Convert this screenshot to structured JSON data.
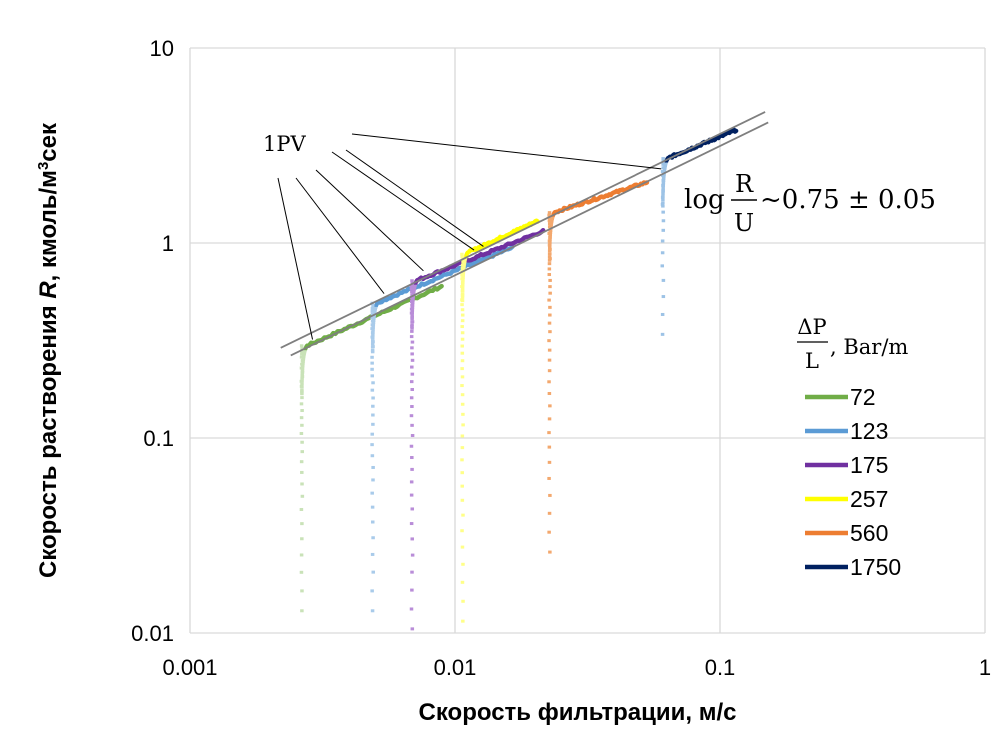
{
  "chart_data": {
    "type": "scatter",
    "xscale": "log",
    "yscale": "log",
    "xlim": [
      0.001,
      1
    ],
    "ylim": [
      0.01,
      10
    ],
    "grid": true,
    "xlabel": "Скорость фильтрации, м/с",
    "ylabel_parts": [
      "Скорость растворения ",
      "R",
      ", кмоль/м",
      "3",
      "сек"
    ],
    "xticks": [
      {
        "v": 0.001,
        "label": "0.001"
      },
      {
        "v": 0.01,
        "label": "0.01"
      },
      {
        "v": 0.1,
        "label": "0.1"
      },
      {
        "v": 1,
        "label": "1"
      }
    ],
    "yticks": [
      {
        "v": 0.01,
        "label": "0.01"
      },
      {
        "v": 0.1,
        "label": "0.1"
      },
      {
        "v": 1,
        "label": "1"
      },
      {
        "v": 10,
        "label": "10"
      }
    ],
    "legend_title": {
      "numerator": "ΔP",
      "denominator": "L",
      "unit": ", Bar/m"
    },
    "legend_position": "right",
    "series": [
      {
        "name": "72",
        "color": "#70AD47",
        "light": "#C9E2B8",
        "u": 0.00265,
        "u_end": 0.0089,
        "r_start": 0.3,
        "r_end": 0.6,
        "r_min": 0.013
      },
      {
        "name": "123",
        "color": "#5B9BD5",
        "light": "#A9CBEA",
        "u": 0.0049,
        "u_end": 0.0165,
        "r_start": 0.5,
        "r_end": 0.95,
        "r_min": 0.013
      },
      {
        "name": "175",
        "color": "#7030A0",
        "light": "#B98DD8",
        "u": 0.0069,
        "u_end": 0.0215,
        "r_start": 0.65,
        "r_end": 1.15,
        "r_min": 0.0105
      },
      {
        "name": "257",
        "color": "#FFFF00",
        "light": "#FFFF88",
        "u": 0.0107,
        "u_end": 0.0205,
        "r_start": 0.9,
        "r_end": 1.3,
        "r_min": 0.0115
      },
      {
        "name": "560",
        "color": "#ED7D31",
        "light": "#F3A86E",
        "u": 0.0228,
        "u_end": 0.053,
        "r_start": 1.45,
        "r_end": 2.05,
        "r_min": 0.026
      },
      {
        "name": "1750",
        "color": "#002060",
        "light": "#9DC3E6",
        "u": 0.061,
        "u_end": 0.115,
        "r_start": 2.75,
        "r_end": 3.8,
        "r_min": 0.34
      }
    ],
    "trend_lines": [
      {
        "x": [
          0.0022,
          0.148
        ],
        "y": [
          0.29,
          4.7
        ]
      },
      {
        "x": [
          0.0024,
          0.152
        ],
        "y": [
          0.265,
          4.15
        ]
      }
    ],
    "annotation": {
      "label": "1PV",
      "formula": {
        "prefix": "log",
        "numerator": "R",
        "denominator": "U",
        "suffix": "~0.75 ± 0.05"
      },
      "pointers": [
        {
          "x": 0.0029,
          "y": 0.32
        },
        {
          "x": 0.0054,
          "y": 0.55
        },
        {
          "x": 0.0076,
          "y": 0.72
        },
        {
          "x": 0.0118,
          "y": 0.92
        },
        {
          "x": 0.0128,
          "y": 0.96
        },
        {
          "x": 0.06,
          "y": 2.4
        }
      ]
    }
  }
}
